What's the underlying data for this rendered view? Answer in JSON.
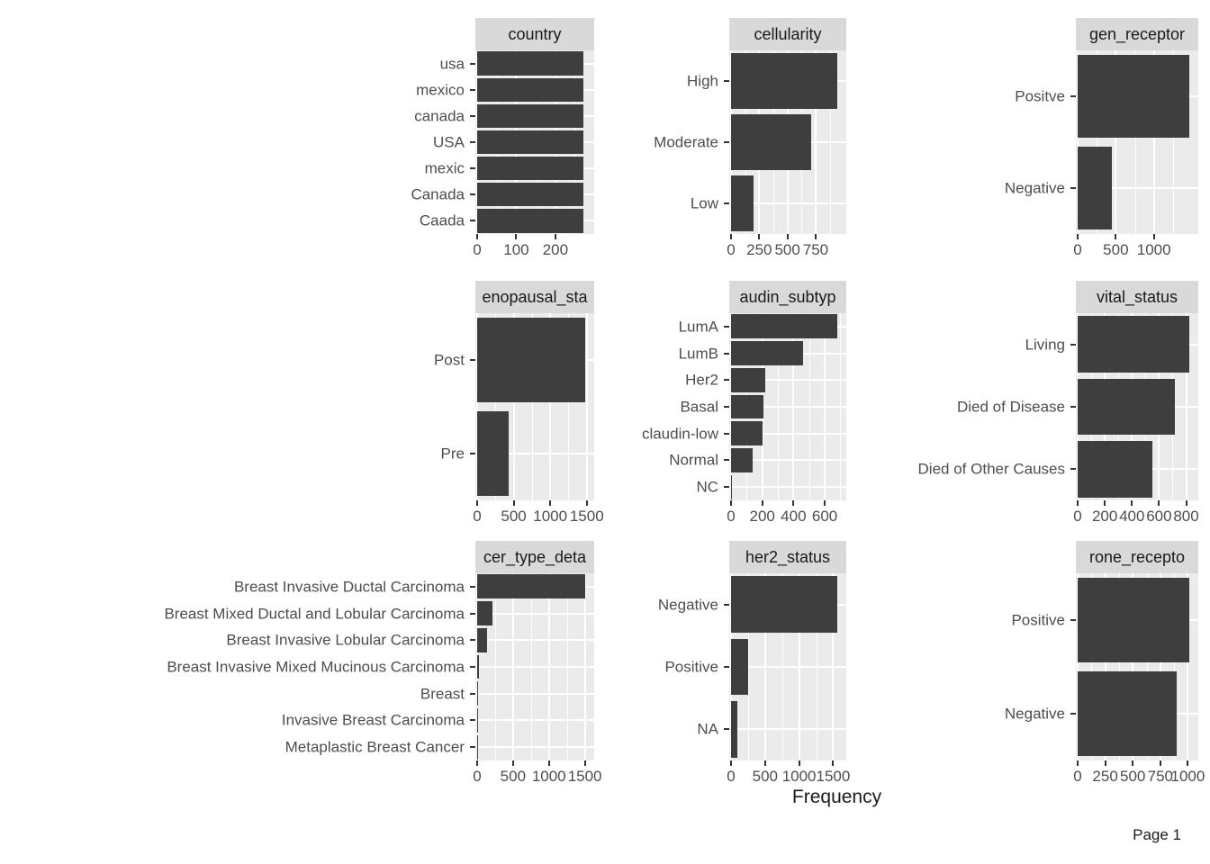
{
  "page": {
    "x_axis_label": "Frequency",
    "page_number": "Page 1"
  },
  "colors": {
    "bar": "#3E3E3E",
    "panel_bg": "#EBEBEB",
    "strip_bg": "#D9D9D9",
    "strip_text": "#1A1A1A",
    "grid": "#FFFFFF",
    "axis_text": "#4D4D4D",
    "tick": "#333333"
  },
  "chart_data": [
    {
      "type": "bar",
      "orientation": "horizontal",
      "title": "country",
      "categories": [
        "usa",
        "mexico",
        "canada",
        "USA",
        "mexic",
        "Canada",
        "Caada"
      ],
      "values": [
        272,
        272,
        272,
        272,
        272,
        272,
        272
      ],
      "x_ticks": [
        0,
        100,
        200
      ],
      "xlim": [
        0,
        290
      ],
      "grid": true
    },
    {
      "type": "bar",
      "orientation": "horizontal",
      "title": "cellularity",
      "categories": [
        "High",
        "Moderate",
        "Low"
      ],
      "values": [
        940,
        711,
        199
      ],
      "x_ticks": [
        0,
        250,
        500,
        750
      ],
      "xlim": [
        0,
        990
      ],
      "grid": true
    },
    {
      "type": "bar",
      "orientation": "horizontal",
      "title": "gen_receptor",
      "categories": [
        "Positve",
        "Negative"
      ],
      "values": [
        1459,
        445
      ],
      "x_ticks": [
        0,
        500,
        1000
      ],
      "xlim": [
        0,
        1535
      ],
      "grid": true
    },
    {
      "type": "bar",
      "orientation": "horizontal",
      "title": "enopausal_sta",
      "categories": [
        "Post",
        "Pre"
      ],
      "values": [
        1475,
        429
      ],
      "x_ticks": [
        0,
        500,
        1000,
        1500
      ],
      "xlim": [
        0,
        1552
      ],
      "grid": true
    },
    {
      "type": "bar",
      "orientation": "horizontal",
      "title": "audin_subtyp",
      "categories": [
        "LumA",
        "LumB",
        "Her2",
        "Basal",
        "claudin-low",
        "Normal",
        "NC"
      ],
      "values": [
        679,
        461,
        220,
        209,
        199,
        140,
        6
      ],
      "x_ticks": [
        0,
        200,
        400,
        600
      ],
      "xlim": [
        0,
        715
      ],
      "grid": true
    },
    {
      "type": "bar",
      "orientation": "horizontal",
      "title": "vital_status",
      "categories": [
        "Living",
        "Died of Disease",
        "Died of Other Causes"
      ],
      "values": [
        820,
        720,
        550
      ],
      "x_ticks": [
        0,
        200,
        400,
        600,
        800
      ],
      "xlim": [
        0,
        863
      ],
      "grid": true
    },
    {
      "type": "bar",
      "orientation": "horizontal",
      "title": "cer_type_deta",
      "categories": [
        "Breast Invasive Ductal Carcinoma",
        "Breast Mixed Ductal and Lobular Carcinoma",
        "Breast Invasive Lobular Carcinoma",
        "Breast Invasive Mixed Mucinous Carcinoma",
        "Breast",
        "Invasive Breast Carcinoma",
        "Metaplastic Breast Cancer"
      ],
      "values": [
        1500,
        207,
        142,
        22,
        17,
        15,
        1
      ],
      "x_ticks": [
        0,
        500,
        1000,
        1500
      ],
      "xlim": [
        0,
        1580
      ],
      "grid": true
    },
    {
      "type": "bar",
      "orientation": "horizontal",
      "title": "her2_status",
      "categories": [
        "Negative",
        "Positive",
        "NA"
      ],
      "values": [
        1560,
        245,
        95
      ],
      "x_ticks": [
        0,
        500,
        1000,
        1500
      ],
      "xlim": [
        0,
        1640
      ],
      "grid": true
    },
    {
      "type": "bar",
      "orientation": "horizontal",
      "title": "rone_recepto",
      "categories": [
        "Positive",
        "Negative"
      ],
      "values": [
        1009,
        895
      ],
      "x_ticks": [
        0,
        250,
        500,
        750,
        1000
      ],
      "xlim": [
        0,
        1062
      ],
      "grid": true
    }
  ]
}
